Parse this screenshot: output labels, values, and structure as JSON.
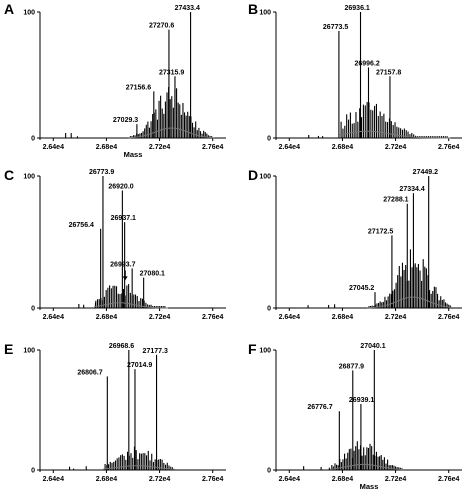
{
  "chart_data": [
    {
      "type": "line",
      "panel": "A",
      "xlabel": "Mass",
      "ylabel": "",
      "xlim": [
        26300,
        27700
      ],
      "ylim": [
        0,
        100
      ],
      "x_ticks": [
        "2.64e4",
        "2.68e4",
        "2.72e4",
        "2.76e4"
      ],
      "y_ticks": [
        "0",
        "100"
      ],
      "annotations": [
        {
          "label": "27433.4",
          "x": 27433.4,
          "y": 100
        },
        {
          "label": "27270.6",
          "x": 27270.6,
          "y": 86
        },
        {
          "label": "27315.9",
          "x": 27315.9,
          "y": 49
        },
        {
          "label": "27156.6",
          "x": 27156.6,
          "y": 37
        },
        {
          "label": "27029.3",
          "x": 27029.3,
          "y": 11
        }
      ],
      "envelope": {
        "start": 26980,
        "end": 27600,
        "step": 12,
        "peak_center": 27290,
        "peak_width": 170,
        "base_level": 44
      }
    },
    {
      "type": "line",
      "panel": "B",
      "xlabel": "",
      "ylabel": "",
      "xlim": [
        26300,
        27700
      ],
      "ylim": [
        0,
        100
      ],
      "x_ticks": [
        "2.64e4",
        "2.68e4",
        "2.72e4",
        "2.76e4"
      ],
      "y_ticks": [
        "0",
        "100"
      ],
      "annotations": [
        {
          "label": "26936.1",
          "x": 26936.1,
          "y": 100
        },
        {
          "label": "26773.5",
          "x": 26773.5,
          "y": 85
        },
        {
          "label": "26996.2",
          "x": 26996.2,
          "y": 56
        },
        {
          "label": "27157.8",
          "x": 27157.8,
          "y": 49
        }
      ],
      "envelope": {
        "start": 26790,
        "end": 27600,
        "step": 14,
        "peak_center": 26990,
        "peak_width": 240,
        "base_level": 30
      }
    },
    {
      "type": "line",
      "panel": "C",
      "xlabel": "",
      "ylabel": "",
      "xlim": [
        26300,
        27700
      ],
      "ylim": [
        0,
        100
      ],
      "x_ticks": [
        "2.64e4",
        "2.68e4",
        "2.72e4",
        "2.76e4"
      ],
      "y_ticks": [
        "0",
        "100"
      ],
      "annotations": [
        {
          "label": "26773.9",
          "x": 26773.9,
          "y": 100
        },
        {
          "label": "26920.0",
          "x": 26920.0,
          "y": 89
        },
        {
          "label": "26756.4",
          "x": 26756.4,
          "y": 60
        },
        {
          "label": "26937.1",
          "x": 26937.1,
          "y": 65
        },
        {
          "label": "26993.7",
          "x": 26993.7,
          "y": 30
        },
        {
          "label": "27080.1",
          "x": 27080.1,
          "y": 23
        }
      ],
      "envelope": {
        "start": 26720,
        "end": 27250,
        "step": 13,
        "peak_center": 26900,
        "peak_width": 160,
        "base_level": 22
      }
    },
    {
      "type": "line",
      "panel": "D",
      "xlabel": "",
      "ylabel": "",
      "xlim": [
        26300,
        27700
      ],
      "ylim": [
        0,
        100
      ],
      "x_ticks": [
        "2.64e4",
        "2.68e4",
        "2.72e4",
        "2.76e4"
      ],
      "y_ticks": [
        "0",
        "100"
      ],
      "annotations": [
        {
          "label": "27449.2",
          "x": 27449.2,
          "y": 100
        },
        {
          "label": "27334.4",
          "x": 27334.4,
          "y": 87
        },
        {
          "label": "27288.1",
          "x": 27288.1,
          "y": 79
        },
        {
          "label": "27172.5",
          "x": 27172.5,
          "y": 55
        },
        {
          "label": "27045.2",
          "x": 27045.2,
          "y": 12
        }
      ],
      "envelope": {
        "start": 27000,
        "end": 27620,
        "step": 12,
        "peak_center": 27330,
        "peak_width": 170,
        "base_level": 46
      }
    },
    {
      "type": "line",
      "panel": "E",
      "xlabel": "",
      "ylabel": "",
      "xlim": [
        26300,
        27700
      ],
      "ylim": [
        0,
        100
      ],
      "x_ticks": [
        "2.64e4",
        "2.68e4",
        "2.72e4",
        "2.76e4"
      ],
      "y_ticks": [
        "0",
        "100"
      ],
      "annotations": [
        {
          "label": "26968.6",
          "x": 26968.6,
          "y": 100
        },
        {
          "label": "27177.3",
          "x": 27177.3,
          "y": 96
        },
        {
          "label": "27014.9",
          "x": 27014.9,
          "y": 84
        },
        {
          "label": "26806.7",
          "x": 26806.7,
          "y": 78
        }
      ],
      "envelope": {
        "start": 26790,
        "end": 27300,
        "step": 13,
        "peak_center": 27030,
        "peak_width": 210,
        "base_level": 20
      }
    },
    {
      "type": "line",
      "panel": "F",
      "xlabel": "Mass",
      "ylabel": "",
      "xlim": [
        26300,
        27700
      ],
      "ylim": [
        0,
        100
      ],
      "x_ticks": [
        "2.64e4",
        "2.68e4",
        "2.72e4",
        "2.76e4"
      ],
      "y_ticks": [
        "0",
        "100"
      ],
      "annotations": [
        {
          "label": "27040.1",
          "x": 27040.1,
          "y": 100
        },
        {
          "label": "26877.9",
          "x": 26877.9,
          "y": 83
        },
        {
          "label": "26939.1",
          "x": 26939.1,
          "y": 55
        },
        {
          "label": "26776.7",
          "x": 26776.7,
          "y": 49
        }
      ],
      "envelope": {
        "start": 26720,
        "end": 27250,
        "step": 12,
        "peak_center": 26960,
        "peak_width": 180,
        "base_level": 26
      }
    }
  ]
}
